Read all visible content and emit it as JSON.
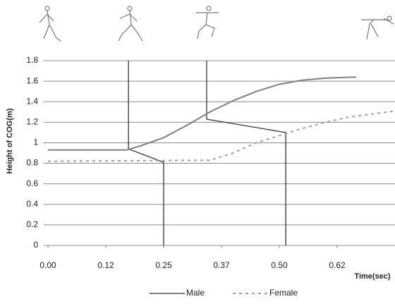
{
  "chart_data": {
    "type": "line",
    "x_label": "Time(sec)",
    "y_label": "Height of COG(m)",
    "xlim": [
      0,
      0.75
    ],
    "ylim": [
      0,
      1.8
    ],
    "xticks": [
      {
        "value": 0,
        "label": "0.00"
      },
      {
        "value": 0.125,
        "label": "0.12"
      },
      0.25,
      {
        "value": 0.375,
        "label": "0.37"
      },
      {
        "value": 0.5,
        "label": "0.50"
      },
      {
        "value": 0.625,
        "label": "0.62"
      }
    ],
    "yticks": [
      0,
      0.2,
      0.4,
      0.6,
      0.8,
      1,
      1.2,
      1.4,
      1.6,
      1.8
    ],
    "grid": true,
    "series": [
      {
        "name": "Male",
        "color": "#808080",
        "dash": false,
        "x": [
          0,
          0.17,
          0.2,
          0.25,
          0.3,
          0.35,
          0.4,
          0.45,
          0.5,
          0.55,
          0.6,
          0.666
        ],
        "values": [
          0.93,
          0.93,
          0.97,
          1.05,
          1.17,
          1.3,
          1.41,
          1.5,
          1.57,
          1.61,
          1.63,
          1.64
        ]
      },
      {
        "name": "Female",
        "color": "#a0a0a0",
        "dash": true,
        "x": [
          0,
          0.35,
          0.4,
          0.45,
          0.5,
          0.55,
          0.6,
          0.65,
          0.7,
          0.75
        ],
        "values": [
          0.82,
          0.83,
          0.9,
          1.0,
          1.07,
          1.14,
          1.2,
          1.25,
          1.28,
          1.31
        ]
      }
    ],
    "annotation_lines": [
      {
        "x": [
          0.174,
          0.174,
          0.25,
          0.25
        ],
        "y": [
          1.8,
          0.94,
          0.81,
          0
        ]
      },
      {
        "x": [
          0.343,
          0.343,
          0.514,
          0.514
        ],
        "y": [
          1.8,
          1.23,
          1.1,
          0
        ]
      }
    ]
  }
}
